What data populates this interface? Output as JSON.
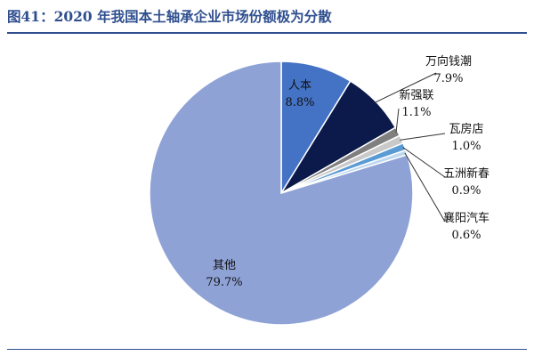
{
  "title": "图41：2020 年我国本土轴承企业市场份额极为分散",
  "chart_data": {
    "type": "pie",
    "title": "图41：2020 年我国本土轴承企业市场份额极为分散",
    "labels": [
      "人本",
      "万向钱潮",
      "新强联",
      "瓦房店",
      "五洲新春",
      "襄阳汽车",
      "其他"
    ],
    "values": [
      8.8,
      7.9,
      1.1,
      1.0,
      0.9,
      0.6,
      79.7
    ],
    "value_labels": [
      "8.8%",
      "7.9%",
      "1.1%",
      "1.0%",
      "0.9%",
      "0.6%",
      "79.7%"
    ],
    "colors": [
      "#4472c4",
      "#0b1a4a",
      "#7f7f7f",
      "#c9c9c9",
      "#5b9bd5",
      "#bdd7ee",
      "#8fa2d6"
    ],
    "start_angle_deg": 0,
    "direction": "clockwise",
    "legend": "none"
  }
}
